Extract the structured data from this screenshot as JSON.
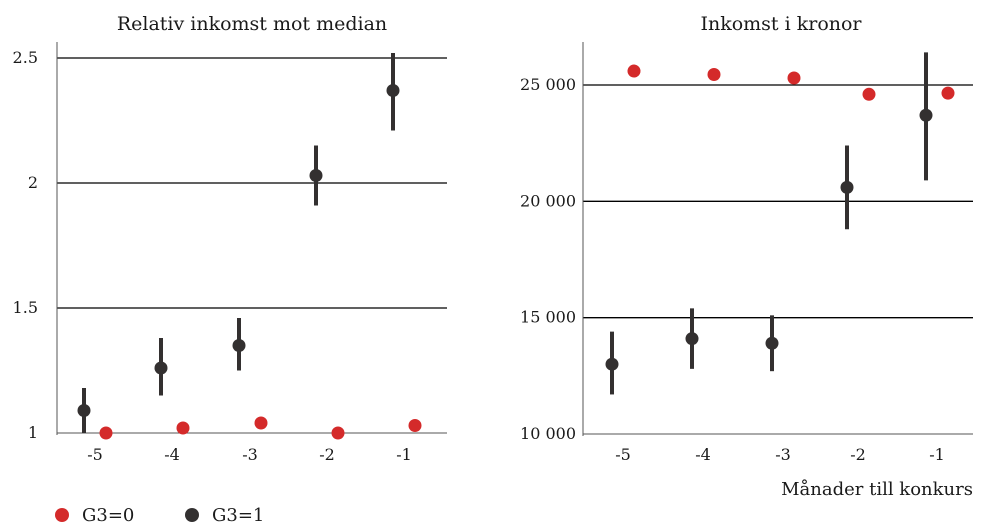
{
  "colors": {
    "g3_0": "#d42a2a",
    "g3_1": "#333030",
    "grid": "#000000",
    "axis": "#555555"
  },
  "legend": [
    {
      "label": "G3=0",
      "color": "#d42a2a"
    },
    {
      "label": "G3=1",
      "color": "#333030"
    }
  ],
  "chart_data": [
    {
      "type": "scatter",
      "title": "Relativ inkomst mot median",
      "xlabel": "",
      "ylabel": "",
      "x_categories": [
        "-5",
        "-4",
        "-3",
        "-2",
        "-1"
      ],
      "ylim": [
        1,
        2.5
      ],
      "yticks": [
        1,
        1.5,
        2,
        2.5
      ],
      "ytick_labels": [
        "1",
        "1.5",
        "2",
        "2.5"
      ],
      "grid": "horizontal",
      "series": [
        {
          "name": "G3=0",
          "color": "#d42a2a",
          "values": [
            1.0,
            1.02,
            1.04,
            1.0,
            1.03
          ]
        },
        {
          "name": "G3=1",
          "color": "#333030",
          "values": [
            1.09,
            1.26,
            1.35,
            2.03,
            2.37
          ],
          "ci_low": [
            1.0,
            1.15,
            1.25,
            1.91,
            2.21
          ],
          "ci_high": [
            1.18,
            1.38,
            1.46,
            2.15,
            2.52
          ]
        }
      ]
    },
    {
      "type": "scatter",
      "title": "Inkomst i kronor",
      "xlabel": "Månader till konkurs",
      "ylabel": "",
      "x_categories": [
        "-5",
        "-4",
        "-3",
        "-2",
        "-1"
      ],
      "ylim": [
        10000,
        25000
      ],
      "yticks": [
        10000,
        15000,
        20000,
        25000
      ],
      "ytick_labels": [
        "10 000",
        "15 000",
        "20 000",
        "25 000"
      ],
      "grid": "horizontal",
      "series": [
        {
          "name": "G3=0",
          "color": "#d42a2a",
          "values": [
            25600,
            25450,
            25300,
            24600,
            24650
          ]
        },
        {
          "name": "G3=1",
          "color": "#333030",
          "values": [
            13000,
            14100,
            13900,
            20600,
            23700
          ],
          "ci_low": [
            11700,
            12800,
            12700,
            18800,
            20900
          ],
          "ci_high": [
            14400,
            15400,
            15100,
            22400,
            26400
          ]
        }
      ]
    }
  ]
}
